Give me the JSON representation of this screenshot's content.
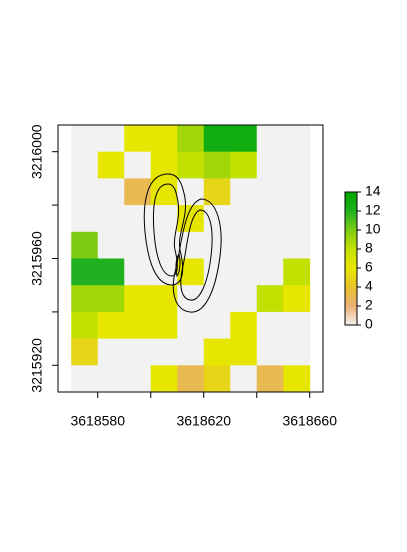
{
  "chart_data": {
    "type": "heatmap",
    "x": [
      3618575,
      3618585,
      3618595,
      3618605,
      3618615,
      3618625,
      3618635,
      3618645,
      3618655
    ],
    "y": [
      3216005,
      3215995,
      3215985,
      3215975,
      3215965,
      3215955,
      3215945,
      3215935,
      3215925,
      3215915
    ],
    "z": [
      [
        0,
        0,
        6,
        6,
        9,
        13,
        13,
        0,
        0
      ],
      [
        0,
        6,
        0,
        6,
        8,
        9,
        8,
        0,
        0
      ],
      [
        0,
        0,
        3,
        6,
        0,
        5,
        0,
        0,
        0
      ],
      [
        0,
        0,
        0,
        0,
        6,
        0,
        0,
        0,
        0
      ],
      [
        10,
        0,
        0,
        0,
        0,
        0,
        0,
        0,
        0
      ],
      [
        12,
        12,
        0,
        0,
        6,
        0,
        0,
        0,
        8
      ],
      [
        9,
        9,
        6,
        6,
        0,
        0,
        0,
        8,
        6
      ],
      [
        8,
        6,
        6,
        6,
        0,
        0,
        6,
        0,
        0
      ],
      [
        5,
        0,
        0,
        0,
        0,
        6,
        6,
        0,
        0
      ],
      [
        0,
        0,
        0,
        6,
        3,
        5,
        0,
        3,
        6
      ]
    ],
    "xlim": [
      3618565,
      3618665
    ],
    "ylim": [
      3215910,
      3216010
    ],
    "xticks": [
      3618580,
      3618620,
      3618660
    ],
    "xminorticks": [
      3618600,
      3618640
    ],
    "yticks": [
      3215920,
      3215960,
      3216000
    ],
    "yminorticks": [
      3215940,
      3215980
    ],
    "zlim": [
      0,
      14
    ],
    "zticks": [
      0,
      2,
      4,
      6,
      8,
      10,
      12,
      14
    ],
    "colorscale": [
      [
        0,
        "#f2f2f2"
      ],
      [
        2,
        "#ecb176"
      ],
      [
        4,
        "#e8c32e"
      ],
      [
        6,
        "#e6e600"
      ],
      [
        8,
        "#c3e100"
      ],
      [
        10,
        "#7ecc12"
      ],
      [
        12,
        "#1fb11f"
      ],
      [
        14,
        "#00a600"
      ]
    ]
  }
}
